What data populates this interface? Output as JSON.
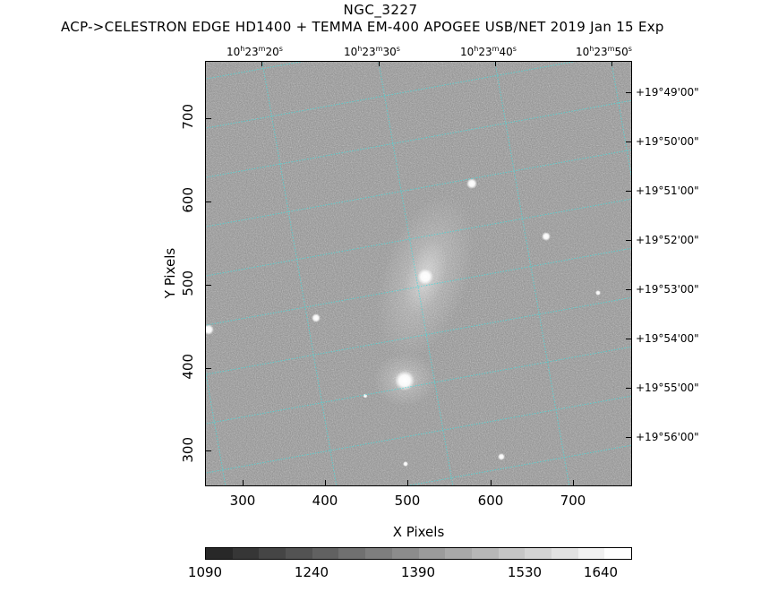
{
  "header": {
    "title": "NGC_3227",
    "subtitle": "ACP->CELESTRON EDGE HD1400 + TEMMA EM-400 APOGEE USB/NET   2019 Jan 15    Exp"
  },
  "ra_labels": [
    {
      "h": "10",
      "m": "23",
      "s": "20"
    },
    {
      "h": "10",
      "m": "23",
      "s": "30"
    },
    {
      "h": "10",
      "m": "23",
      "s": "40"
    },
    {
      "h": "10",
      "m": "23",
      "s": "50"
    }
  ],
  "dec_labels": [
    "+19°49'00\"",
    "+19°50'00\"",
    "+19°51'00\"",
    "+19°52'00\"",
    "+19°53'00\"",
    "+19°54'00\"",
    "+19°55'00\"",
    "+19°56'00\""
  ],
  "y_axis": {
    "title": "Y Pixels",
    "ticks": [
      "700",
      "600",
      "500",
      "400",
      "300"
    ]
  },
  "x_axis": {
    "title": "X Pixels",
    "ticks": [
      "300",
      "400",
      "500",
      "600",
      "700"
    ]
  },
  "colorbar": {
    "labels": [
      "1090",
      "1240",
      "1390",
      "1530",
      "1640"
    ]
  },
  "colors": {
    "grid": "#4fd6d6",
    "background": "#8a8a8a"
  }
}
